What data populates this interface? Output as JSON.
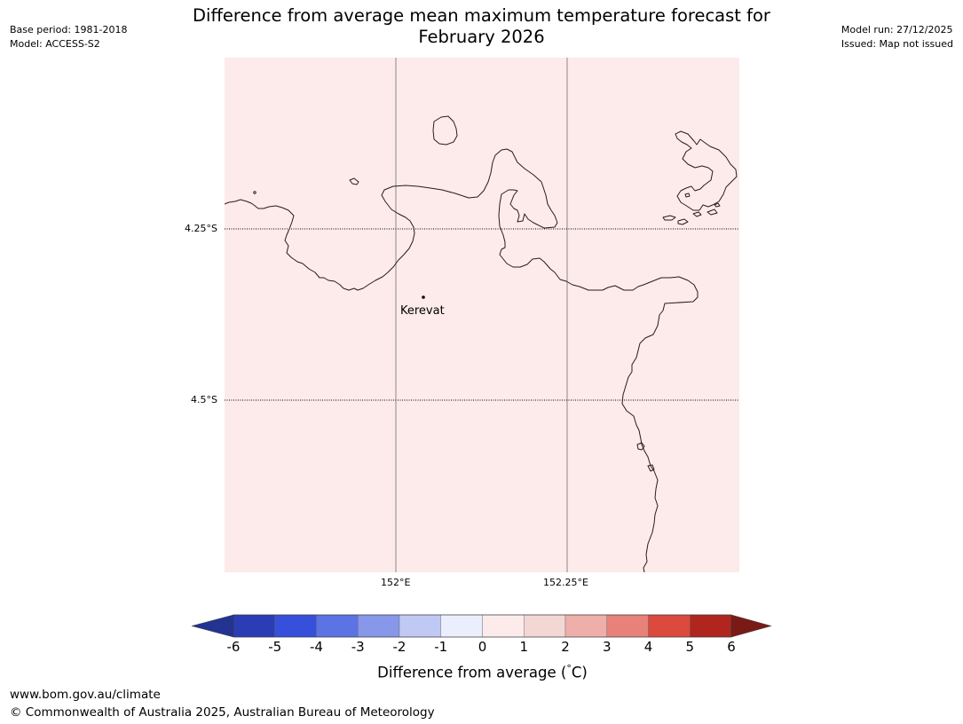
{
  "header": {
    "base_period": "Base period: 1981-2018",
    "model": "Model: ACCESS-S2",
    "title_line1": "Difference from average mean maximum temperature forecast for",
    "title_line2": "February 2026",
    "model_run": "Model run: 27/12/2025",
    "issued": "Issued: Map not issued"
  },
  "map": {
    "fill_color": "#fcebea",
    "lat_labels": [
      "4.25°S",
      "4.5°S"
    ],
    "lon_labels": [
      "152°E",
      "152.25°E"
    ],
    "place": {
      "name": "Kerevat"
    }
  },
  "legend": {
    "ticks": [
      "-6",
      "-5",
      "-4",
      "-3",
      "-2",
      "-1",
      "0",
      "1",
      "2",
      "3",
      "4",
      "5",
      "6"
    ],
    "colors": [
      "#233391",
      "#2a3db5",
      "#3650dc",
      "#5b73e4",
      "#8797ea",
      "#c0c8f4",
      "#ebeefd",
      "#fcebea",
      "#f2d7d4",
      "#eeaeaa",
      "#e78179",
      "#dc4a3e",
      "#b0261e",
      "#7a1a16"
    ],
    "label": "Difference from average ($^\\circ$C)",
    "label_text": "Difference from average (",
    "label_unit": "C)",
    "label_degree": "°"
  },
  "footer": {
    "url": "www.bom.gov.au/climate",
    "copyright": "© Commonwealth of Australia 2025, Australian Bureau of Meteorology"
  }
}
